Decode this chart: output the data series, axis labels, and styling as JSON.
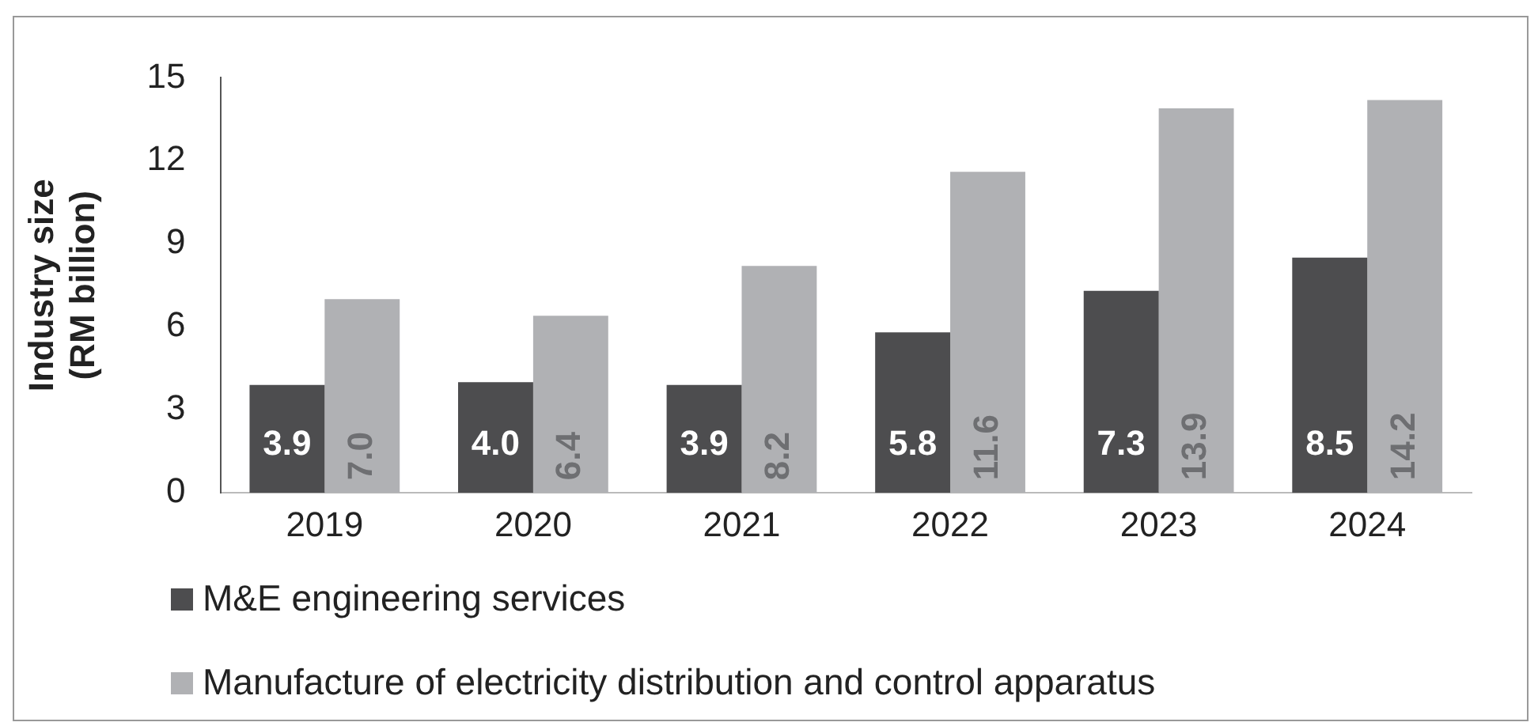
{
  "chart_data": {
    "type": "bar",
    "ylabel": "Industry size\n(RM billion)",
    "categories": [
      "2019",
      "2020",
      "2021",
      "2022",
      "2023",
      "2024"
    ],
    "series": [
      {
        "name": "M&E engineering services",
        "color": "#4d4d4f",
        "values": [
          3.9,
          4.0,
          3.9,
          5.8,
          7.3,
          8.5
        ],
        "value_labels": [
          "3.9",
          "4.0",
          "3.9",
          "5.8",
          "7.3",
          "8.5"
        ]
      },
      {
        "name": "Manufacture of electricity distribution and control apparatus",
        "color": "#b0b1b4",
        "values": [
          7.0,
          6.4,
          8.2,
          11.6,
          13.9,
          14.2
        ],
        "value_labels": [
          "7.0",
          "6.4",
          "8.2",
          "11.6",
          "13.9",
          "14.2"
        ]
      }
    ],
    "ylim": [
      0,
      15
    ],
    "yticks": [
      0,
      3,
      6,
      9,
      12,
      15
    ],
    "grid": false,
    "legend": "bottom"
  }
}
